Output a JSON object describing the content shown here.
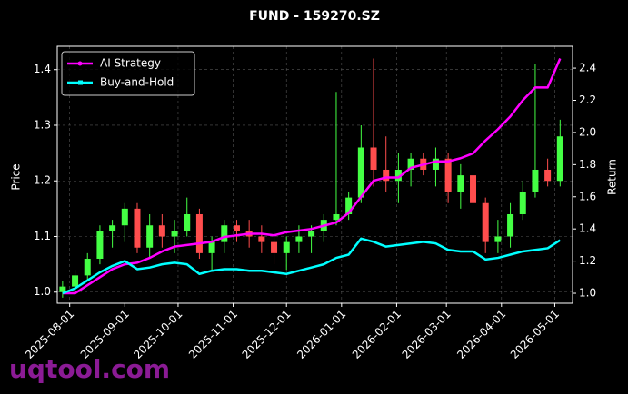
{
  "chart_data": {
    "type": "candlestick",
    "title": "FUND - 159270.SZ",
    "ylabel": "Price",
    "y2label": "Return",
    "watermark": "uqtool.com",
    "x": [
      "2025-07-28",
      "2025-08-04",
      "2025-08-11",
      "2025-08-18",
      "2025-08-25",
      "2025-09-01",
      "2025-09-08",
      "2025-09-15",
      "2025-09-22",
      "2025-09-29",
      "2025-10-06",
      "2025-10-13",
      "2025-10-20",
      "2025-10-27",
      "2025-11-03",
      "2025-11-10",
      "2025-11-17",
      "2025-11-24",
      "2025-12-01",
      "2025-12-08",
      "2025-12-15",
      "2025-12-22",
      "2025-12-29",
      "2026-01-05",
      "2026-01-12",
      "2026-01-19",
      "2026-01-26",
      "2026-02-02",
      "2026-02-09",
      "2026-02-16",
      "2026-02-23",
      "2026-03-02",
      "2026-03-09",
      "2026-03-16",
      "2026-03-23",
      "2026-03-30",
      "2026-04-06",
      "2026-04-13",
      "2026-04-20",
      "2026-04-27",
      "2026-05-04"
    ],
    "open": [
      1.0,
      1.01,
      1.03,
      1.06,
      1.11,
      1.12,
      1.15,
      1.08,
      1.12,
      1.1,
      1.11,
      1.14,
      1.07,
      1.09,
      1.12,
      1.11,
      1.1,
      1.09,
      1.07,
      1.09,
      1.1,
      1.11,
      1.13,
      1.14,
      1.17,
      1.26,
      1.22,
      1.2,
      1.22,
      1.24,
      1.22,
      1.24,
      1.18,
      1.21,
      1.16,
      1.09,
      1.1,
      1.14,
      1.18,
      1.22,
      1.2
    ],
    "high": [
      1.02,
      1.04,
      1.07,
      1.12,
      1.13,
      1.16,
      1.16,
      1.14,
      1.14,
      1.13,
      1.17,
      1.15,
      1.1,
      1.13,
      1.13,
      1.13,
      1.12,
      1.11,
      1.1,
      1.12,
      1.12,
      1.14,
      1.36,
      1.18,
      1.3,
      1.42,
      1.28,
      1.25,
      1.25,
      1.25,
      1.26,
      1.25,
      1.23,
      1.22,
      1.17,
      1.13,
      1.16,
      1.2,
      1.41,
      1.24,
      1.31
    ],
    "low": [
      0.99,
      1.0,
      1.02,
      1.05,
      1.08,
      1.09,
      1.07,
      1.06,
      1.08,
      1.07,
      1.1,
      1.06,
      1.04,
      1.07,
      1.09,
      1.08,
      1.07,
      1.05,
      1.04,
      1.07,
      1.07,
      1.09,
      1.12,
      1.13,
      1.16,
      1.19,
      1.18,
      1.16,
      1.19,
      1.21,
      1.19,
      1.16,
      1.15,
      1.14,
      1.07,
      1.07,
      1.08,
      1.13,
      1.17,
      1.19,
      1.19
    ],
    "close": [
      1.01,
      1.03,
      1.06,
      1.11,
      1.12,
      1.15,
      1.08,
      1.12,
      1.1,
      1.11,
      1.14,
      1.07,
      1.09,
      1.12,
      1.11,
      1.1,
      1.09,
      1.07,
      1.09,
      1.1,
      1.11,
      1.13,
      1.14,
      1.17,
      1.26,
      1.22,
      1.2,
      1.22,
      1.24,
      1.22,
      1.24,
      1.18,
      1.21,
      1.16,
      1.09,
      1.1,
      1.14,
      1.18,
      1.22,
      1.2,
      1.28
    ],
    "up_color": "#44ff44",
    "down_color": "#ff4d4d",
    "series": [
      {
        "name": "AI Strategy",
        "color": "#ff00ff",
        "axis": "y2",
        "values": [
          1.0,
          1.0,
          1.05,
          1.1,
          1.15,
          1.18,
          1.19,
          1.22,
          1.26,
          1.29,
          1.3,
          1.31,
          1.32,
          1.35,
          1.36,
          1.37,
          1.37,
          1.36,
          1.38,
          1.39,
          1.4,
          1.42,
          1.44,
          1.5,
          1.6,
          1.7,
          1.72,
          1.72,
          1.78,
          1.8,
          1.82,
          1.82,
          1.84,
          1.87,
          1.95,
          2.02,
          2.1,
          2.2,
          2.28,
          2.28,
          2.46
        ]
      },
      {
        "name": "Buy-and-Hold",
        "color": "#00ffff",
        "axis": "y2",
        "values": [
          1.0,
          1.03,
          1.08,
          1.13,
          1.17,
          1.2,
          1.15,
          1.16,
          1.18,
          1.19,
          1.18,
          1.12,
          1.14,
          1.15,
          1.15,
          1.14,
          1.14,
          1.13,
          1.12,
          1.14,
          1.16,
          1.18,
          1.22,
          1.24,
          1.34,
          1.32,
          1.29,
          1.3,
          1.31,
          1.32,
          1.31,
          1.27,
          1.26,
          1.26,
          1.21,
          1.22,
          1.24,
          1.26,
          1.27,
          1.28,
          1.33
        ]
      }
    ],
    "xlim": [
      "2025-07-25",
      "2026-05-11"
    ],
    "xticks": [
      "2025-08-01",
      "2025-09-01",
      "2025-10-01",
      "2025-11-01",
      "2025-12-01",
      "2026-01-01",
      "2026-02-01",
      "2026-03-01",
      "2026-04-01",
      "2026-05-01"
    ],
    "ylim": [
      0.98,
      1.442
    ],
    "yticks": [
      {
        "value": 1.0,
        "label": "1.0"
      },
      1.1,
      1.2,
      1.3,
      1.4
    ],
    "y2lim": [
      0.938,
      2.536
    ],
    "y2ticks": [
      {
        "value": 1.0,
        "label": "1.0"
      },
      1.2,
      1.4,
      1.6,
      1.8,
      {
        "value": 2.0,
        "label": "2.0"
      },
      2.2,
      2.4
    ],
    "grid": true,
    "legend": "upper left"
  }
}
